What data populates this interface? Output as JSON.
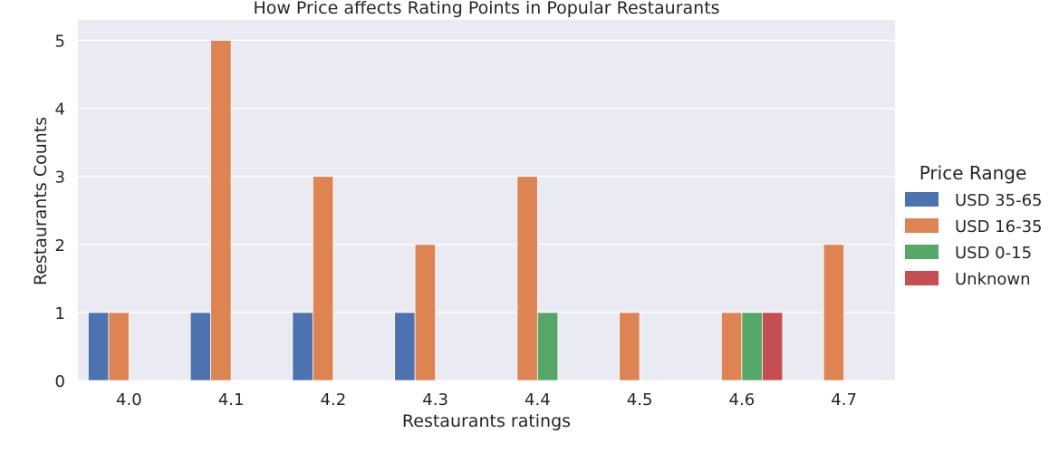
{
  "chart_data": {
    "type": "bar",
    "title": "How Price affects Rating Points in Popular Restaurants",
    "xlabel": "Restaurants ratings",
    "ylabel": "Restaurants Counts",
    "categories": [
      "4.0",
      "4.1",
      "4.2",
      "4.3",
      "4.4",
      "4.5",
      "4.6",
      "4.7"
    ],
    "yticks": [
      "0",
      "1",
      "2",
      "3",
      "4",
      "5"
    ],
    "ylim": [
      0,
      5.3
    ],
    "grid": true,
    "legend": {
      "title": "Price Range",
      "placement": "right"
    },
    "series": [
      {
        "name": "USD 35-65",
        "color": "#4c72b0",
        "values": [
          1,
          1,
          1,
          1,
          0,
          0,
          0,
          0
        ]
      },
      {
        "name": "USD 16-35",
        "color": "#dd8452",
        "values": [
          1,
          5,
          3,
          2,
          3,
          1,
          1,
          2
        ]
      },
      {
        "name": "USD 0-15",
        "color": "#55a868",
        "values": [
          0,
          0,
          0,
          0,
          1,
          0,
          1,
          0
        ]
      },
      {
        "name": "Unknown",
        "color": "#c44e52",
        "values": [
          0,
          0,
          0,
          0,
          0,
          0,
          1,
          0
        ]
      }
    ]
  },
  "colors": {
    "plot_background": "#eaeaf2",
    "grid": "#ffffff",
    "text": "#262626"
  }
}
